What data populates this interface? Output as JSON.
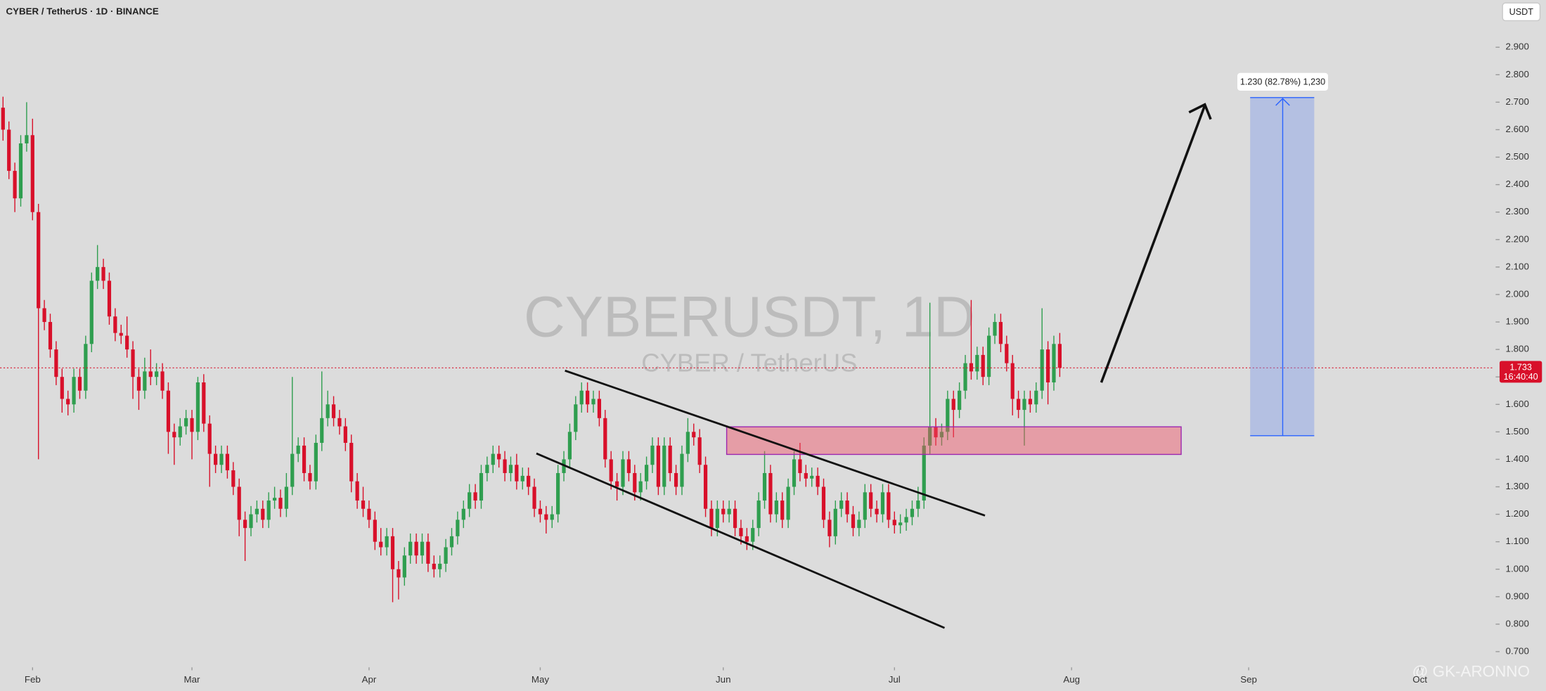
{
  "chart_data": {
    "type": "candlestick",
    "title": "CYBER / TetherUS · 1D · BINANCE",
    "watermark": "CYBERUSDT, 1D",
    "watermark_subtitle": "CYBER / TetherUS",
    "currency_button": "USDT",
    "measure_label": "1.230 (82.78%) 1,230",
    "price_label": "1.733",
    "countdown": "16:40:40",
    "author": "@ GK-ARONNO",
    "up_color": "#2f9e4f",
    "down_color": "#d8102a",
    "ylim": [
      0.65,
      3.072
    ],
    "xlim": [
      -0.5,
      252.5
    ],
    "yticks": [
      {
        "value": 0.7,
        "label": "0.700"
      },
      {
        "value": 0.8,
        "label": "0.800"
      },
      {
        "value": 0.9,
        "label": "0.900"
      },
      {
        "value": 1,
        "label": "1.000"
      },
      {
        "value": 1.1,
        "label": "1.100"
      },
      {
        "value": 1.2,
        "label": "1.200"
      },
      {
        "value": 1.3,
        "label": "1.300"
      },
      {
        "value": 1.4,
        "label": "1.400"
      },
      {
        "value": 1.5,
        "label": "1.500"
      },
      {
        "value": 1.6,
        "label": "1.600"
      },
      {
        "value": 1.7,
        "label": "1.700"
      },
      {
        "value": 1.8,
        "label": "1.800"
      },
      {
        "value": 1.9,
        "label": "1.900"
      },
      {
        "value": 2,
        "label": "2.000"
      },
      {
        "value": 2.1,
        "label": "2.100"
      },
      {
        "value": 2.2,
        "label": "2.200"
      },
      {
        "value": 2.3,
        "label": "2.300"
      },
      {
        "value": 2.4,
        "label": "2.400"
      },
      {
        "value": 2.5,
        "label": "2.500"
      },
      {
        "value": 2.6,
        "label": "2.600"
      },
      {
        "value": 2.7,
        "label": "2.700"
      },
      {
        "value": 2.8,
        "label": "2.800"
      },
      {
        "value": 2.9,
        "label": "2.900"
      }
    ],
    "xticks": [
      {
        "value": 5,
        "label": "Feb"
      },
      {
        "value": 32,
        "label": "Mar"
      },
      {
        "value": 62,
        "label": "Apr"
      },
      {
        "value": 91,
        "label": "May"
      },
      {
        "value": 122,
        "label": "Jun"
      },
      {
        "value": 151,
        "label": "Jul"
      },
      {
        "value": 181,
        "label": "Aug"
      },
      {
        "value": 211,
        "label": "Sep"
      },
      {
        "value": 240,
        "label": "Oct"
      }
    ],
    "candles": [
      [
        2.68,
        2.72,
        2.56,
        2.6
      ],
      [
        2.6,
        2.63,
        2.42,
        2.45
      ],
      [
        2.45,
        2.48,
        2.3,
        2.35
      ],
      [
        2.35,
        2.58,
        2.32,
        2.55
      ],
      [
        2.55,
        2.7,
        2.52,
        2.58
      ],
      [
        2.58,
        2.64,
        2.27,
        2.3
      ],
      [
        2.3,
        2.33,
        1.4,
        1.95
      ],
      [
        1.95,
        1.98,
        1.87,
        1.9
      ],
      [
        1.9,
        1.93,
        1.77,
        1.8
      ],
      [
        1.8,
        1.83,
        1.67,
        1.7
      ],
      [
        1.7,
        1.73,
        1.57,
        1.62
      ],
      [
        1.62,
        1.65,
        1.56,
        1.6
      ],
      [
        1.6,
        1.73,
        1.57,
        1.7
      ],
      [
        1.7,
        1.73,
        1.62,
        1.65
      ],
      [
        1.65,
        1.85,
        1.62,
        1.82
      ],
      [
        1.82,
        2.08,
        1.79,
        2.05
      ],
      [
        2.05,
        2.18,
        2.02,
        2.1
      ],
      [
        2.1,
        2.13,
        2.02,
        2.05
      ],
      [
        2.05,
        2.08,
        1.89,
        1.92
      ],
      [
        1.92,
        1.95,
        1.83,
        1.86
      ],
      [
        1.86,
        1.89,
        1.82,
        1.85
      ],
      [
        1.85,
        1.92,
        1.77,
        1.8
      ],
      [
        1.8,
        1.83,
        1.62,
        1.7
      ],
      [
        1.7,
        1.73,
        1.58,
        1.65
      ],
      [
        1.65,
        1.77,
        1.62,
        1.72
      ],
      [
        1.72,
        1.8,
        1.67,
        1.7
      ],
      [
        1.7,
        1.75,
        1.67,
        1.72
      ],
      [
        1.72,
        1.75,
        1.62,
        1.65
      ],
      [
        1.65,
        1.68,
        1.42,
        1.5
      ],
      [
        1.5,
        1.53,
        1.38,
        1.48
      ],
      [
        1.48,
        1.55,
        1.45,
        1.52
      ],
      [
        1.52,
        1.58,
        1.49,
        1.55
      ],
      [
        1.55,
        1.58,
        1.4,
        1.5
      ],
      [
        1.5,
        1.7,
        1.47,
        1.68
      ],
      [
        1.68,
        1.71,
        1.5,
        1.53
      ],
      [
        1.53,
        1.56,
        1.3,
        1.42
      ],
      [
        1.42,
        1.45,
        1.35,
        1.38
      ],
      [
        1.38,
        1.45,
        1.35,
        1.42
      ],
      [
        1.42,
        1.45,
        1.33,
        1.36
      ],
      [
        1.36,
        1.39,
        1.27,
        1.3
      ],
      [
        1.3,
        1.33,
        1.12,
        1.18
      ],
      [
        1.18,
        1.21,
        1.03,
        1.15
      ],
      [
        1.15,
        1.23,
        1.12,
        1.2
      ],
      [
        1.2,
        1.25,
        1.17,
        1.22
      ],
      [
        1.22,
        1.25,
        1.15,
        1.18
      ],
      [
        1.18,
        1.28,
        1.15,
        1.25
      ],
      [
        1.25,
        1.3,
        1.22,
        1.26
      ],
      [
        1.26,
        1.29,
        1.19,
        1.22
      ],
      [
        1.22,
        1.35,
        1.19,
        1.3
      ],
      [
        1.3,
        1.7,
        1.27,
        1.42
      ],
      [
        1.42,
        1.48,
        1.39,
        1.45
      ],
      [
        1.45,
        1.48,
        1.32,
        1.35
      ],
      [
        1.35,
        1.38,
        1.29,
        1.32
      ],
      [
        1.32,
        1.49,
        1.29,
        1.46
      ],
      [
        1.46,
        1.72,
        1.43,
        1.55
      ],
      [
        1.55,
        1.65,
        1.52,
        1.6
      ],
      [
        1.6,
        1.63,
        1.52,
        1.55
      ],
      [
        1.55,
        1.58,
        1.49,
        1.52
      ],
      [
        1.52,
        1.55,
        1.43,
        1.46
      ],
      [
        1.46,
        1.49,
        1.28,
        1.32
      ],
      [
        1.32,
        1.35,
        1.22,
        1.25
      ],
      [
        1.25,
        1.3,
        1.19,
        1.22
      ],
      [
        1.22,
        1.25,
        1.15,
        1.18
      ],
      [
        1.18,
        1.21,
        1.07,
        1.1
      ],
      [
        1.1,
        1.15,
        1.05,
        1.08
      ],
      [
        1.08,
        1.15,
        1.05,
        1.12
      ],
      [
        1.12,
        1.15,
        0.88,
        1
      ],
      [
        1,
        1.03,
        0.89,
        0.97
      ],
      [
        0.97,
        1.08,
        0.94,
        1.05
      ],
      [
        1.05,
        1.13,
        1.02,
        1.1
      ],
      [
        1.1,
        1.13,
        1.02,
        1.05
      ],
      [
        1.05,
        1.13,
        1.02,
        1.1
      ],
      [
        1.1,
        1.13,
        0.99,
        1.02
      ],
      [
        1.02,
        1.05,
        0.97,
        1
      ],
      [
        1,
        1.05,
        0.97,
        1.02
      ],
      [
        1.02,
        1.11,
        0.99,
        1.08
      ],
      [
        1.08,
        1.15,
        1.05,
        1.12
      ],
      [
        1.12,
        1.21,
        1.09,
        1.18
      ],
      [
        1.18,
        1.25,
        1.15,
        1.22
      ],
      [
        1.22,
        1.31,
        1.19,
        1.28
      ],
      [
        1.28,
        1.31,
        1.22,
        1.25
      ],
      [
        1.25,
        1.38,
        1.22,
        1.35
      ],
      [
        1.35,
        1.41,
        1.32,
        1.38
      ],
      [
        1.38,
        1.45,
        1.35,
        1.42
      ],
      [
        1.42,
        1.45,
        1.37,
        1.4
      ],
      [
        1.4,
        1.43,
        1.32,
        1.35
      ],
      [
        1.35,
        1.41,
        1.32,
        1.38
      ],
      [
        1.38,
        1.42,
        1.29,
        1.32
      ],
      [
        1.32,
        1.37,
        1.29,
        1.34
      ],
      [
        1.34,
        1.37,
        1.27,
        1.3
      ],
      [
        1.3,
        1.33,
        1.19,
        1.22
      ],
      [
        1.22,
        1.25,
        1.17,
        1.2
      ],
      [
        1.2,
        1.23,
        1.13,
        1.18
      ],
      [
        1.18,
        1.23,
        1.15,
        1.2
      ],
      [
        1.2,
        1.38,
        1.17,
        1.35
      ],
      [
        1.35,
        1.43,
        1.32,
        1.4
      ],
      [
        1.4,
        1.53,
        1.37,
        1.5
      ],
      [
        1.5,
        1.63,
        1.47,
        1.6
      ],
      [
        1.6,
        1.68,
        1.57,
        1.65
      ],
      [
        1.65,
        1.68,
        1.57,
        1.6
      ],
      [
        1.6,
        1.65,
        1.57,
        1.62
      ],
      [
        1.62,
        1.65,
        1.52,
        1.55
      ],
      [
        1.55,
        1.58,
        1.37,
        1.4
      ],
      [
        1.4,
        1.43,
        1.29,
        1.32
      ],
      [
        1.32,
        1.35,
        1.25,
        1.3
      ],
      [
        1.3,
        1.43,
        1.27,
        1.4
      ],
      [
        1.4,
        1.43,
        1.32,
        1.35
      ],
      [
        1.35,
        1.38,
        1.25,
        1.28
      ],
      [
        1.28,
        1.35,
        1.25,
        1.32
      ],
      [
        1.32,
        1.41,
        1.29,
        1.38
      ],
      [
        1.38,
        1.48,
        1.35,
        1.45
      ],
      [
        1.45,
        1.48,
        1.27,
        1.3
      ],
      [
        1.3,
        1.48,
        1.27,
        1.45
      ],
      [
        1.45,
        1.48,
        1.32,
        1.35
      ],
      [
        1.35,
        1.38,
        1.27,
        1.3
      ],
      [
        1.3,
        1.45,
        1.27,
        1.42
      ],
      [
        1.42,
        1.55,
        1.39,
        1.5
      ],
      [
        1.5,
        1.53,
        1.45,
        1.48
      ],
      [
        1.48,
        1.51,
        1.35,
        1.38
      ],
      [
        1.38,
        1.41,
        1.19,
        1.22
      ],
      [
        1.22,
        1.25,
        1.12,
        1.15
      ],
      [
        1.15,
        1.25,
        1.12,
        1.22
      ],
      [
        1.22,
        1.25,
        1.17,
        1.2
      ],
      [
        1.2,
        1.25,
        1.17,
        1.22
      ],
      [
        1.22,
        1.25,
        1.12,
        1.15
      ],
      [
        1.15,
        1.18,
        1.09,
        1.12
      ],
      [
        1.12,
        1.15,
        1.07,
        1.1
      ],
      [
        1.1,
        1.18,
        1.07,
        1.15
      ],
      [
        1.15,
        1.28,
        1.12,
        1.25
      ],
      [
        1.25,
        1.43,
        1.22,
        1.35
      ],
      [
        1.35,
        1.38,
        1.17,
        1.2
      ],
      [
        1.2,
        1.28,
        1.17,
        1.25
      ],
      [
        1.25,
        1.28,
        1.15,
        1.18
      ],
      [
        1.18,
        1.33,
        1.15,
        1.3
      ],
      [
        1.3,
        1.43,
        1.27,
        1.4
      ],
      [
        1.4,
        1.46,
        1.32,
        1.35
      ],
      [
        1.35,
        1.38,
        1.3,
        1.33
      ],
      [
        1.33,
        1.37,
        1.3,
        1.34
      ],
      [
        1.34,
        1.37,
        1.27,
        1.3
      ],
      [
        1.3,
        1.33,
        1.15,
        1.18
      ],
      [
        1.18,
        1.21,
        1.08,
        1.12
      ],
      [
        1.12,
        1.25,
        1.09,
        1.22
      ],
      [
        1.22,
        1.28,
        1.19,
        1.25
      ],
      [
        1.25,
        1.28,
        1.17,
        1.2
      ],
      [
        1.2,
        1.23,
        1.12,
        1.15
      ],
      [
        1.15,
        1.21,
        1.12,
        1.18
      ],
      [
        1.18,
        1.31,
        1.15,
        1.28
      ],
      [
        1.28,
        1.31,
        1.19,
        1.22
      ],
      [
        1.22,
        1.25,
        1.17,
        1.2
      ],
      [
        1.2,
        1.31,
        1.17,
        1.28
      ],
      [
        1.28,
        1.31,
        1.15,
        1.18
      ],
      [
        1.18,
        1.21,
        1.13,
        1.16
      ],
      [
        1.16,
        1.2,
        1.13,
        1.17
      ],
      [
        1.17,
        1.22,
        1.14,
        1.19
      ],
      [
        1.19,
        1.25,
        1.16,
        1.22
      ],
      [
        1.22,
        1.3,
        1.19,
        1.25
      ],
      [
        1.25,
        1.48,
        1.22,
        1.45
      ],
      [
        1.45,
        1.97,
        1.42,
        1.52
      ],
      [
        1.52,
        1.55,
        1.45,
        1.48
      ],
      [
        1.48,
        1.53,
        1.45,
        1.5
      ],
      [
        1.5,
        1.65,
        1.47,
        1.62
      ],
      [
        1.62,
        1.65,
        1.48,
        1.58
      ],
      [
        1.58,
        1.68,
        1.55,
        1.65
      ],
      [
        1.65,
        1.78,
        1.62,
        1.75
      ],
      [
        1.75,
        1.98,
        1.69,
        1.72
      ],
      [
        1.72,
        1.81,
        1.69,
        1.78
      ],
      [
        1.78,
        1.81,
        1.67,
        1.7
      ],
      [
        1.7,
        1.88,
        1.67,
        1.85
      ],
      [
        1.85,
        1.93,
        1.82,
        1.9
      ],
      [
        1.9,
        1.93,
        1.79,
        1.82
      ],
      [
        1.82,
        1.85,
        1.72,
        1.75
      ],
      [
        1.75,
        1.78,
        1.56,
        1.62
      ],
      [
        1.62,
        1.65,
        1.55,
        1.58
      ],
      [
        1.58,
        1.65,
        1.45,
        1.62
      ],
      [
        1.62,
        1.65,
        1.57,
        1.6
      ],
      [
        1.6,
        1.68,
        1.57,
        1.65
      ],
      [
        1.65,
        1.95,
        1.62,
        1.8
      ],
      [
        1.8,
        1.83,
        1.6,
        1.68
      ],
      [
        1.68,
        1.85,
        1.65,
        1.82
      ],
      [
        1.82,
        1.86,
        1.7,
        1.733
      ]
    ]
  }
}
